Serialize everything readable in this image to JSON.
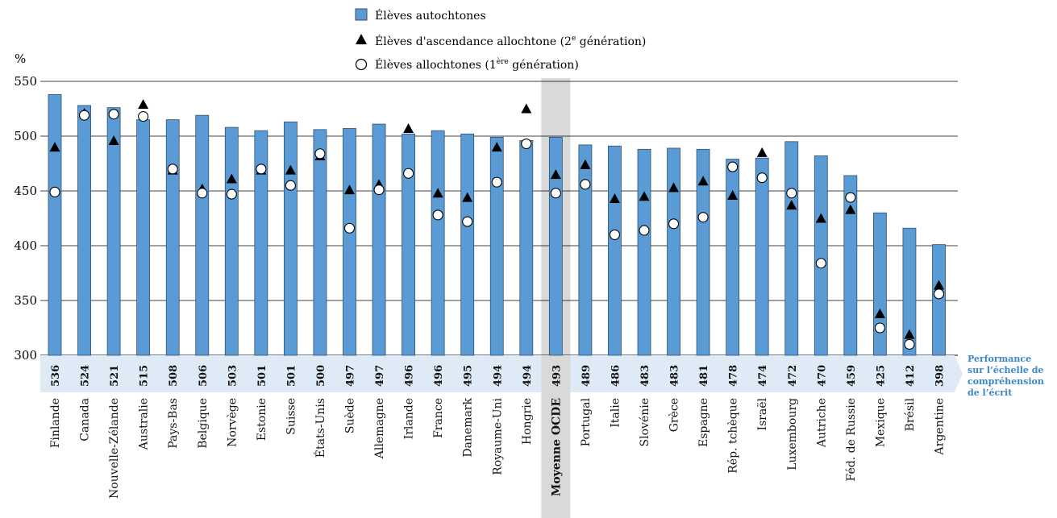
{
  "chart_data": {
    "type": "bar",
    "ylabel": "%",
    "ylim": [
      300,
      550
    ],
    "yticks": [
      300,
      350,
      400,
      450,
      500,
      550
    ],
    "grid": true,
    "legend_position": "top-center",
    "categories": [
      "Finlande",
      "Canada",
      "Nouvelle-Zélande",
      "Australie",
      "Pays-Bas",
      "Belgique",
      "Norvège",
      "Estonie",
      "Suisse",
      "États-Unis",
      "Suède",
      "Allemagne",
      "Irlande",
      "France",
      "Danemark",
      "Royaume-Uni",
      "Hongrie",
      "Moyenne OCDE",
      "Portugal",
      "Italie",
      "Slovénie",
      "Grèce",
      "Espagne",
      "Rép. tchèque",
      "Israël",
      "Luxembourg",
      "Autriche",
      "Féd. de Russie",
      "Mexique",
      "Brésil",
      "Argentine"
    ],
    "scores": [
      "536",
      "524",
      "521",
      "515",
      "508",
      "506",
      "503",
      "501",
      "501",
      "500",
      "497",
      "497",
      "496",
      "496",
      "495",
      "494",
      "494",
      "493",
      "489",
      "486",
      "483",
      "483",
      "481",
      "478",
      "474",
      "472",
      "470",
      "459",
      "425",
      "412",
      "398"
    ],
    "partner_countries": [
      "Féd. de Russie",
      "Brésil",
      "Argentine"
    ],
    "highlight_category": "Moyenne OCDE",
    "series": [
      {
        "name": "Élèves autochtones",
        "marker": "bar",
        "values": [
          538,
          528,
          526,
          515,
          515,
          519,
          508,
          505,
          513,
          506,
          507,
          511,
          502,
          505,
          502,
          499,
          496,
          499,
          492,
          491,
          488,
          489,
          488,
          479,
          480,
          495,
          482,
          464,
          430,
          416,
          401
        ]
      },
      {
        "name": "Élèves d'ascendance allochtone (2e génération)",
        "marker": "triangle",
        "values": [
          490,
          521,
          496,
          529,
          469,
          452,
          461,
          469,
          469,
          482,
          451,
          456,
          507,
          448,
          444,
          490,
          525,
          465,
          474,
          443,
          445,
          453,
          459,
          446,
          485,
          437,
          425,
          433,
          338,
          319,
          364
        ]
      },
      {
        "name": "Élèves allochtones (1ère génération)",
        "marker": "circle",
        "values": [
          449,
          519,
          520,
          518,
          470,
          448,
          447,
          470,
          455,
          484,
          416,
          451,
          466,
          428,
          422,
          458,
          493,
          448,
          456,
          410,
          414,
          420,
          426,
          472,
          462,
          448,
          384,
          444,
          325,
          310,
          356
        ]
      }
    ],
    "side_label": [
      "Performance",
      "sur l’échelle de",
      "compréhension",
      "de l’écrit"
    ],
    "colors": {
      "bar": "#5b9bd5",
      "bar_stroke": "#2f4f6f",
      "band": "#deebf7",
      "highlight": "#d9d9d9",
      "partner_text": "#3a87c8",
      "side_label": "#3a87c8"
    }
  },
  "legend": {
    "bar_label": "Élèves autochtones",
    "triangle_label_main": "Élèves d'ascendance allochtone (2",
    "triangle_label_sup": "e",
    "triangle_label_end": " génération)",
    "circle_label_main": "Élèves allochtones (1",
    "circle_label_sup": "ère",
    "circle_label_end": " génération)"
  }
}
